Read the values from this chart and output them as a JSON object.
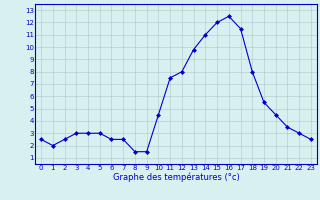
{
  "hours": [
    0,
    1,
    2,
    3,
    4,
    5,
    6,
    7,
    8,
    9,
    10,
    11,
    12,
    13,
    14,
    15,
    16,
    17,
    18,
    19,
    20,
    21,
    22,
    23
  ],
  "temps": [
    2.5,
    2.0,
    2.5,
    3.0,
    3.0,
    3.0,
    2.5,
    2.5,
    1.5,
    1.5,
    4.5,
    7.5,
    8.0,
    9.8,
    11.0,
    12.0,
    12.5,
    11.5,
    8.0,
    5.5,
    4.5,
    3.5,
    3.0,
    2.5
  ],
  "line_color": "#0000cc",
  "marker": "D",
  "marker_size": 2,
  "bg_color": "#d8f0f0",
  "grid_major_color": "#b0c8c8",
  "grid_minor_color": "#c8e0e0",
  "xlabel": "Graphe des températures (°c)",
  "ylabel_ticks": [
    1,
    2,
    3,
    4,
    5,
    6,
    7,
    8,
    9,
    10,
    11,
    12,
    13
  ],
  "xlim": [
    -0.5,
    23.5
  ],
  "ylim": [
    0.5,
    13.5
  ],
  "tick_fontsize": 5,
  "xlabel_fontsize": 6
}
